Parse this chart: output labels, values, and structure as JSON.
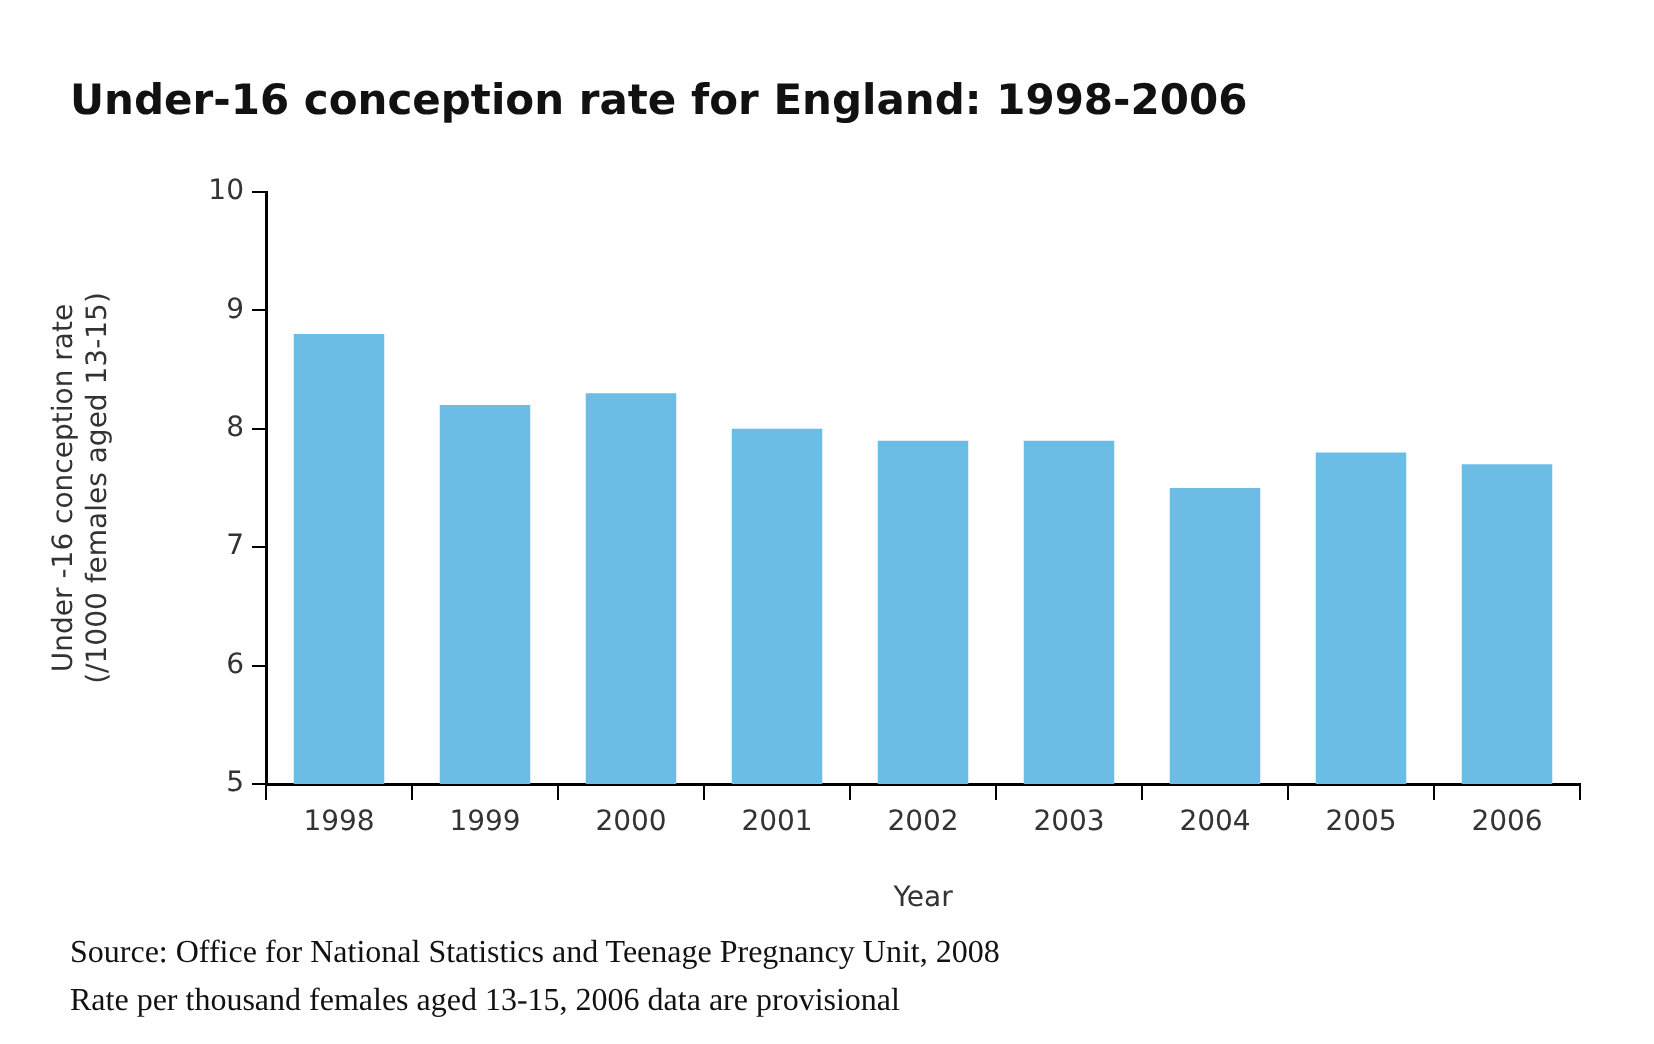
{
  "chart_data": {
    "type": "bar",
    "title": "Under-16 conception rate for England: 1998-2006",
    "xlabel": "Year",
    "ylabel": "Under -16 conception rate\n(/1000 females aged 13-15)",
    "categories": [
      "1998",
      "1999",
      "2000",
      "2001",
      "2002",
      "2003",
      "2004",
      "2005",
      "2006"
    ],
    "values": [
      8.8,
      8.2,
      8.3,
      8.0,
      7.9,
      7.9,
      7.5,
      7.8,
      7.7
    ],
    "color": "#6bbde6",
    "ylim": [
      5,
      10
    ],
    "yticks": [
      5,
      6,
      7,
      8,
      9,
      10
    ],
    "grid": false,
    "legend": false,
    "annotations": [
      "Source: Office for National Statistics and Teenage Pregnancy Unit, 2008",
      "Rate per thousand females aged 13-15, 2006 data are provisional"
    ]
  }
}
